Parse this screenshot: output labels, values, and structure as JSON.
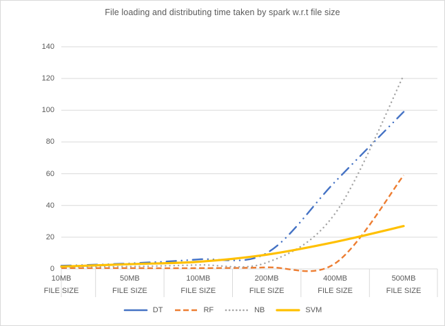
{
  "chart_data": {
    "type": "line",
    "title": "File loading and distributing time taken by spark w.r.t file size",
    "categories": [
      "10MB",
      "50MB",
      "100MB",
      "200MB",
      "400MB",
      "500MB"
    ],
    "category_sublabel": "FILE SIZE",
    "series": [
      {
        "name": "DT",
        "color": "#4472C4",
        "line_style": "long-dash-dot-dot",
        "values": [
          2,
          3.5,
          6,
          10,
          55,
          99
        ]
      },
      {
        "name": "RF",
        "color": "#ED7D31",
        "line_style": "dashed",
        "values": [
          0.5,
          0.5,
          0.5,
          1,
          3.5,
          59
        ]
      },
      {
        "name": "NB",
        "color": "#A5A5A5",
        "line_style": "dotted",
        "values": [
          1,
          1.5,
          2.5,
          4,
          35,
          122
        ]
      },
      {
        "name": "SVM",
        "color": "#FFC000",
        "line_style": "solid",
        "values": [
          1.5,
          3,
          4.5,
          9,
          17,
          27
        ]
      }
    ],
    "ylim": [
      0,
      140
    ],
    "yticks": [
      0,
      20,
      40,
      60,
      80,
      100,
      120,
      140
    ],
    "grid": true,
    "gridline_color": "#d9d9d9",
    "axis_text_color": "#595959",
    "legend_position": "bottom",
    "smoothed_lines": true
  }
}
